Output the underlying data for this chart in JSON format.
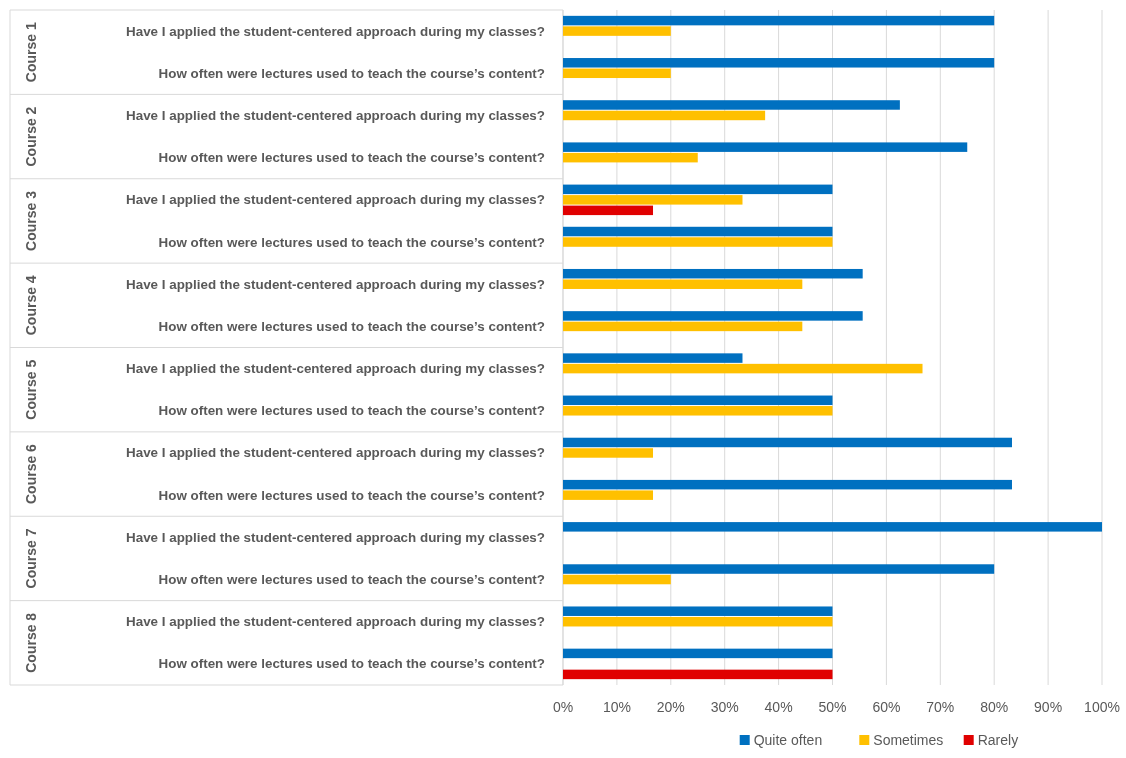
{
  "chart_data": {
    "type": "bar",
    "orientation": "horizontal",
    "categories": [
      "Have I applied the student-centered approach during my classes?",
      "How often were lectures used to teach the course’s content?",
      "Have I applied the student-centered approach during my classes?",
      "How often were lectures used to teach the course’s content?",
      "Have I applied the student-centered approach during my classes?",
      "How often were lectures used to teach the course’s content?",
      "Have I applied the student-centered approach during my classes?",
      "How often were lectures used to teach the course’s content?",
      "Have I applied the student-centered approach during my classes?",
      "How often were lectures used to teach the course’s content?",
      "Have I applied the student-centered approach during my classes?",
      "How often were lectures used to teach the course’s content?",
      "Have I applied the student-centered approach during my classes?",
      "How often were lectures used to teach the course’s content?",
      "Have I applied the student-centered approach during my classes?",
      "How often were lectures used to teach the course’s content?"
    ],
    "series": [
      {
        "name": "Quite often",
        "color": "#0070c0",
        "values": [
          80,
          80,
          62.5,
          75,
          50,
          50,
          55.6,
          55.6,
          33.3,
          50,
          83.3,
          83.3,
          100,
          80,
          50,
          50
        ]
      },
      {
        "name": "Sometimes",
        "color": "#ffc000",
        "values": [
          20,
          20,
          37.5,
          25,
          33.3,
          50,
          44.4,
          44.4,
          66.7,
          50,
          16.7,
          16.7,
          null,
          20,
          50,
          null
        ]
      },
      {
        "name": "Rarely",
        "color": "#e00000",
        "values": [
          null,
          null,
          null,
          null,
          16.7,
          null,
          null,
          null,
          null,
          null,
          null,
          null,
          null,
          null,
          null,
          50
        ]
      }
    ],
    "annotations": [
      "Course 1",
      "Course 2",
      "Course 3",
      "Course 4",
      "Course 5",
      "Course 6",
      "Course 7",
      "Course 8"
    ],
    "xlim": [
      0,
      100
    ],
    "xticks": [
      {
        "value": 0,
        "label": "0%"
      },
      {
        "value": 10,
        "label": "10%"
      },
      {
        "value": 20,
        "label": "20%"
      },
      {
        "value": 30,
        "label": "30%"
      },
      {
        "value": 40,
        "label": "40%"
      },
      {
        "value": 50,
        "label": "50%"
      },
      {
        "value": 60,
        "label": "60%"
      },
      {
        "value": 70,
        "label": "70%"
      },
      {
        "value": 80,
        "label": "80%"
      },
      {
        "value": 90,
        "label": "90%"
      },
      {
        "value": 100,
        "label": "100%"
      }
    ],
    "grid": "x",
    "legend": "bottom"
  }
}
